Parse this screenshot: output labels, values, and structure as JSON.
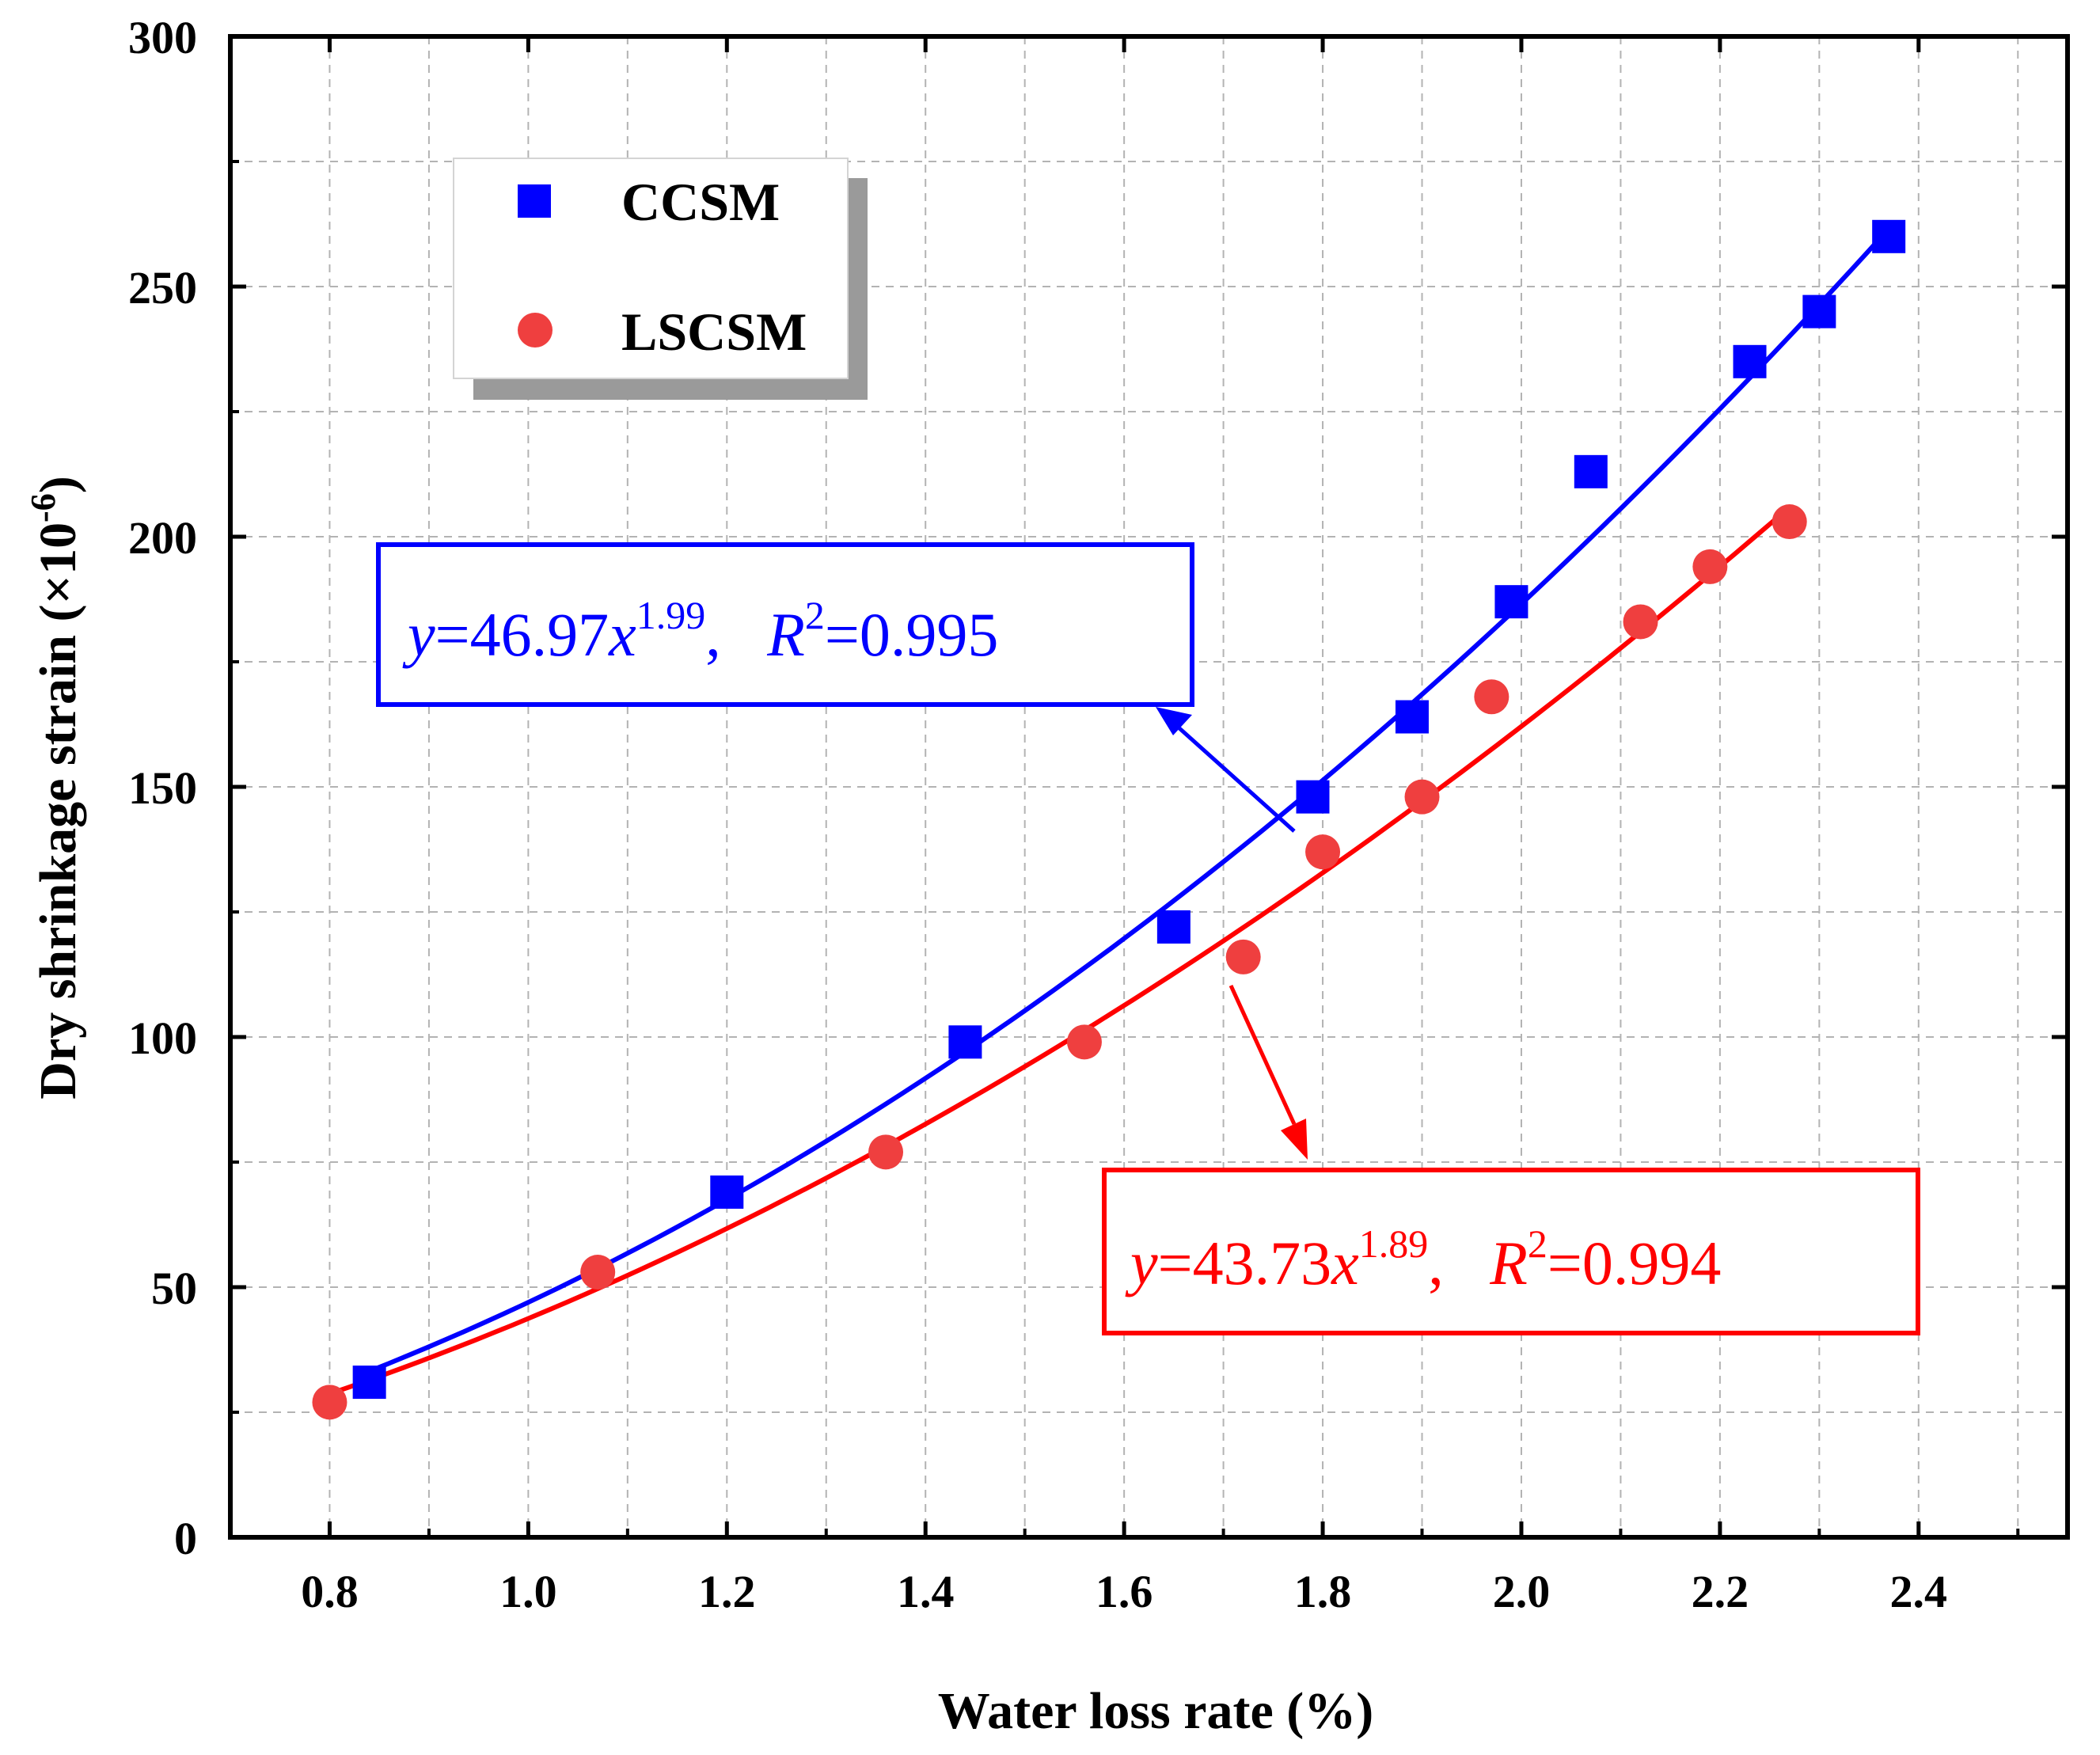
{
  "chart_data": {
    "type": "scatter",
    "xlabel": "Water loss rate (%)",
    "ylabel_main": "Dry shrinkage strain (×10",
    "ylabel_exp": "-6",
    "ylabel_close": ")",
    "xlim": [
      0.7,
      2.55
    ],
    "ylim": [
      0,
      300
    ],
    "x_ticks": [
      "0.8",
      "1.0",
      "1.2",
      "1.4",
      "1.6",
      "1.8",
      "2.0",
      "2.2",
      "2.4"
    ],
    "x_tick_values": [
      0.8,
      1.0,
      1.2,
      1.4,
      1.6,
      1.8,
      2.0,
      2.2,
      2.4
    ],
    "x_minor_tick_values": [
      0.9,
      1.1,
      1.3,
      1.5,
      1.7,
      1.9,
      2.1,
      2.3,
      2.5
    ],
    "y_ticks": [
      "0",
      "50",
      "100",
      "150",
      "200",
      "250",
      "300"
    ],
    "y_tick_values": [
      0,
      50,
      100,
      150,
      200,
      250,
      300
    ],
    "y_minor_tick_values": [
      25,
      75,
      125,
      175,
      225,
      275
    ],
    "grid": true,
    "legend_position": "top-left",
    "series": [
      {
        "name": "CCSM",
        "marker": "square",
        "color": "#0000ff",
        "points": [
          [
            0.84,
            31
          ],
          [
            1.2,
            69
          ],
          [
            1.44,
            99
          ],
          [
            1.65,
            122
          ],
          [
            1.79,
            148
          ],
          [
            1.89,
            164
          ],
          [
            1.99,
            187
          ],
          [
            2.07,
            213
          ],
          [
            2.23,
            235
          ],
          [
            2.3,
            245
          ],
          [
            2.37,
            260
          ]
        ],
        "fit": {
          "a": 46.97,
          "b": 1.99,
          "x_range": [
            0.84,
            2.37
          ]
        },
        "equation": {
          "y": "y",
          "eq1": "=46.97",
          "x": "x",
          "exp": "1.99",
          "sep": ",   ",
          "r": "R",
          "r_exp": "2",
          "r_val": "=0.995"
        }
      },
      {
        "name": "LSCSM",
        "marker": "circle",
        "color": "#ff0000",
        "points": [
          [
            0.8,
            27
          ],
          [
            1.07,
            53
          ],
          [
            1.36,
            77
          ],
          [
            1.56,
            99
          ],
          [
            1.72,
            116
          ],
          [
            1.8,
            137
          ],
          [
            1.9,
            148
          ],
          [
            1.97,
            168
          ],
          [
            2.12,
            183
          ],
          [
            2.19,
            194
          ],
          [
            2.27,
            203
          ]
        ],
        "fit": {
          "a": 43.73,
          "b": 1.89,
          "x_range": [
            0.8,
            2.27
          ]
        },
        "equation": {
          "y": "y",
          "eq1": "=43.73",
          "x": "x",
          "exp": "1.89",
          "sep": ",   ",
          "r": "R",
          "r_exp": "2",
          "r_val": "=0.994"
        }
      }
    ]
  }
}
